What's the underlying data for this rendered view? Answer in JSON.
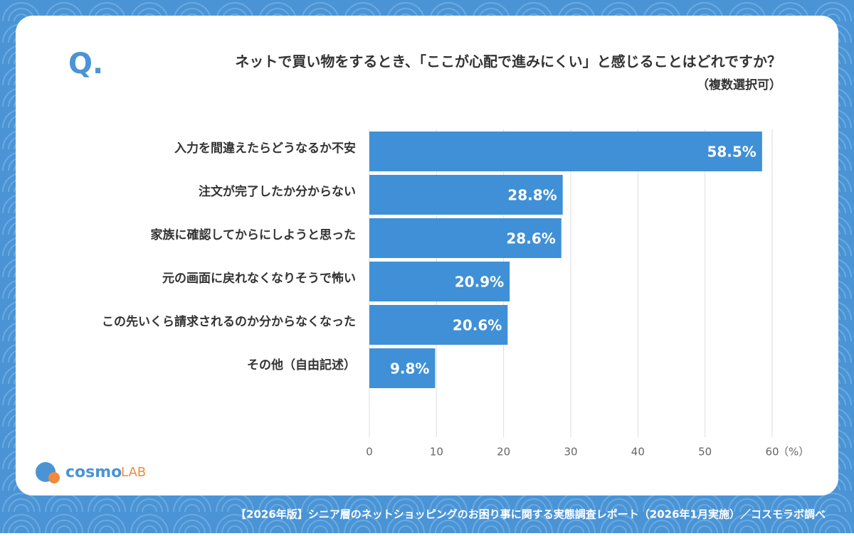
{
  "question_marker": "Q.",
  "chart_data": {
    "type": "barh",
    "title": "ネットで買い物をするとき、「ここが心配で進みにくい」と感じることはどれですか？",
    "subtitle": "（複数選択可）",
    "categories": [
      "入力を間違えたらどうなるか不安",
      "注文が完了したか分からない",
      "家族に確認してからにしようと思った",
      "元の画面に戻れなくなりそうで怖い",
      "この先いくら請求されるのか分からなくなった",
      "その他（自由記述）"
    ],
    "values": [
      58.5,
      28.8,
      28.6,
      20.9,
      20.6,
      9.8
    ],
    "value_labels": [
      "58.5%",
      "28.8%",
      "28.6%",
      "20.9%",
      "20.6%",
      "9.8%"
    ],
    "color": "#3f90d6",
    "xlim": [
      0,
      60
    ],
    "xticks": [
      0,
      10,
      20,
      30,
      40,
      50,
      60
    ],
    "xlabel": "（%）",
    "grid": true
  },
  "logo": {
    "text": "cosmo",
    "suffix": "LAB"
  },
  "footer": "【2026年版】シニア層のネットショッピングのお困り事に関する実態調査レポート（2026年1月実施）／コスモラボ調べ"
}
